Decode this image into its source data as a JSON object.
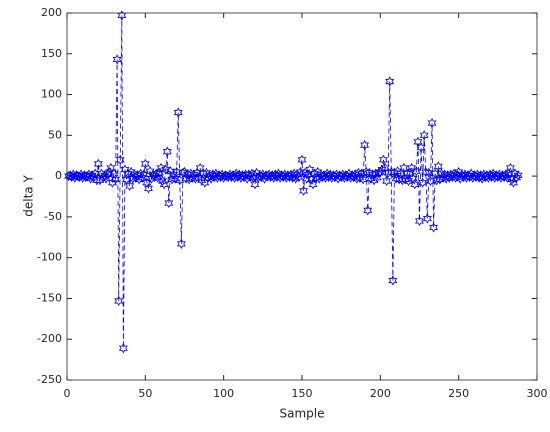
{
  "chart_data": {
    "type": "line",
    "xlabel": "Sample",
    "ylabel": "delta Y",
    "xlim": [
      0,
      300
    ],
    "xticks": [
      0,
      50,
      100,
      150,
      200,
      250,
      300
    ],
    "ylim": [
      -250,
      200
    ],
    "yticks": [
      -250,
      -200,
      -150,
      -100,
      -50,
      0,
      50,
      100,
      150,
      200
    ],
    "series": [
      {
        "color": "#0000ff",
        "marker": "hexagram",
        "linestyle": "dashed",
        "x": [
          1,
          2,
          3,
          4,
          5,
          6,
          7,
          8,
          9,
          10,
          11,
          12,
          13,
          14,
          15,
          16,
          17,
          18,
          19,
          20,
          21,
          22,
          23,
          24,
          25,
          26,
          27,
          28,
          29,
          30,
          31,
          32,
          33,
          34,
          35,
          36,
          37,
          38,
          39,
          40,
          41,
          42,
          43,
          44,
          45,
          46,
          47,
          48,
          49,
          50,
          51,
          52,
          53,
          54,
          55,
          56,
          57,
          58,
          59,
          60,
          61,
          62,
          63,
          64,
          65,
          66,
          67,
          68,
          69,
          70,
          71,
          72,
          73,
          74,
          75,
          76,
          77,
          78,
          79,
          80,
          81,
          82,
          83,
          84,
          85,
          86,
          87,
          88,
          89,
          90,
          91,
          92,
          93,
          94,
          95,
          96,
          97,
          98,
          99,
          100,
          101,
          102,
          103,
          104,
          105,
          106,
          107,
          108,
          109,
          110,
          111,
          112,
          113,
          114,
          115,
          116,
          117,
          118,
          119,
          120,
          121,
          122,
          123,
          124,
          125,
          126,
          127,
          128,
          129,
          130,
          131,
          132,
          133,
          134,
          135,
          136,
          137,
          138,
          139,
          140,
          141,
          142,
          143,
          144,
          145,
          146,
          147,
          148,
          149,
          150,
          151,
          152,
          153,
          154,
          155,
          156,
          157,
          158,
          159,
          160,
          161,
          162,
          163,
          164,
          165,
          166,
          167,
          168,
          169,
          170,
          171,
          172,
          173,
          174,
          175,
          176,
          177,
          178,
          179,
          180,
          181,
          182,
          183,
          184,
          185,
          186,
          187,
          188,
          189,
          190,
          191,
          192,
          193,
          194,
          195,
          196,
          197,
          198,
          199,
          200,
          201,
          202,
          203,
          204,
          205,
          206,
          207,
          208,
          209,
          210,
          211,
          212,
          213,
          214,
          215,
          216,
          217,
          218,
          219,
          220,
          221,
          222,
          223,
          224,
          225,
          226,
          227,
          228,
          229,
          230,
          231,
          232,
          233,
          234,
          235,
          236,
          237,
          238,
          239,
          240,
          241,
          242,
          243,
          244,
          245,
          246,
          247,
          248,
          249,
          250,
          251,
          252,
          253,
          254,
          255,
          256,
          257,
          258,
          259,
          260,
          261,
          262,
          263,
          264,
          265,
          266,
          267,
          268,
          269,
          270,
          271,
          272,
          273,
          274,
          275,
          276,
          277,
          278,
          279,
          280,
          281,
          282,
          283,
          284,
          285,
          286,
          287,
          288
        ],
        "values": [
          0,
          1,
          -1,
          2,
          -2,
          1,
          0,
          -1,
          2,
          -2,
          1,
          -1,
          0,
          2,
          -3,
          1,
          -2,
          3,
          -5,
          15,
          -5,
          3,
          -2,
          1,
          -3,
          2,
          5,
          10,
          -8,
          3,
          -4,
          143,
          -153,
          20,
          197,
          -211,
          8,
          -4,
          3,
          -12,
          5,
          -3,
          2,
          -2,
          1,
          -4,
          3,
          -2,
          2,
          15,
          -8,
          -15,
          6,
          -3,
          2,
          -1,
          3,
          -2,
          4,
          10,
          -6,
          -10,
          8,
          30,
          -33,
          6,
          -4,
          2,
          -3,
          5,
          78,
          -5,
          -83,
          4,
          5,
          -3,
          2,
          -4,
          3,
          -2,
          2,
          -3,
          4,
          -2,
          10,
          -5,
          3,
          -8,
          4,
          -2,
          1,
          -3,
          2,
          -1,
          3,
          -2,
          1,
          -1,
          2,
          -2,
          1,
          0,
          -1,
          2,
          -1,
          1,
          -2,
          3,
          -1,
          2,
          -2,
          1,
          -1,
          2,
          -3,
          2,
          -1,
          3,
          -2,
          -10,
          4,
          -2,
          1,
          -1,
          2,
          -3,
          1,
          0,
          2,
          -1,
          1,
          -2,
          2,
          -1,
          3,
          -2,
          1,
          -1,
          2,
          -2,
          1,
          -1,
          2,
          -2,
          3,
          -3,
          2,
          -1,
          5,
          20,
          -18,
          4,
          -3,
          2,
          8,
          -4,
          -10,
          3,
          -2,
          5,
          -3,
          2,
          -1,
          1,
          -2,
          3,
          -1,
          2,
          -2,
          1,
          -1,
          2,
          -3,
          1,
          -1,
          2,
          -2,
          1,
          -1,
          3,
          -2,
          1,
          -1,
          2,
          -3,
          4,
          -2,
          3,
          -4,
          38,
          5,
          -42,
          4,
          -3,
          2,
          -5,
          3,
          -2,
          4,
          5,
          8,
          20,
          10,
          -6,
          4,
          116,
          5,
          -128,
          4,
          -3,
          6,
          -4,
          3,
          -5,
          10,
          -4,
          3,
          -6,
          4,
          10,
          -3,
          -10,
          6,
          42,
          -55,
          35,
          -8,
          50,
          5,
          -52,
          4,
          -6,
          65,
          -63,
          3,
          -5,
          12,
          -4,
          3,
          -2,
          2,
          -3,
          1,
          -2,
          2,
          -1,
          3,
          -2,
          1,
          5,
          -3,
          2,
          -1,
          2,
          -2,
          1,
          -1,
          3,
          -2,
          1,
          -1,
          2,
          -2,
          1,
          -3,
          2,
          -1,
          1,
          -2,
          2,
          -1,
          3,
          -2,
          1,
          -1,
          2,
          -2,
          1,
          -1,
          2,
          -2,
          3,
          10,
          -4,
          -8,
          3,
          -2,
          1
        ]
      }
    ]
  }
}
